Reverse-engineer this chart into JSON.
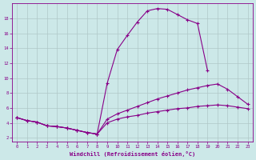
{
  "xlabel": "Windchill (Refroidissement éolien,°C)",
  "background_color": "#cce8e8",
  "grid_color": "#b0c8c8",
  "line_color": "#880088",
  "xlim": [
    -0.5,
    23.5
  ],
  "ylim": [
    1.5,
    20
  ],
  "xticks": [
    0,
    1,
    2,
    3,
    4,
    5,
    6,
    7,
    8,
    9,
    10,
    11,
    12,
    13,
    14,
    15,
    16,
    17,
    18,
    19,
    20,
    21,
    22,
    23
  ],
  "yticks": [
    2,
    4,
    6,
    8,
    10,
    12,
    14,
    16,
    18
  ],
  "line1_x": [
    0,
    1,
    2,
    3,
    4,
    5,
    6,
    7,
    8,
    9,
    10,
    11,
    12,
    13,
    14,
    15,
    16,
    17,
    18,
    19
  ],
  "line1_y": [
    4.7,
    4.3,
    4.1,
    3.6,
    3.5,
    3.3,
    3.0,
    2.7,
    2.5,
    9.3,
    13.8,
    15.7,
    17.5,
    19.0,
    19.3,
    19.2,
    18.5,
    17.8,
    17.3,
    11.0
  ],
  "line2_x": [
    0,
    1,
    2,
    3,
    4,
    5,
    6,
    7,
    8,
    9,
    10,
    11,
    12,
    13,
    14,
    15,
    16,
    17,
    18,
    19,
    20,
    21,
    22,
    23
  ],
  "line2_y": [
    4.7,
    4.3,
    4.1,
    3.6,
    3.5,
    3.3,
    3.0,
    2.7,
    2.5,
    4.5,
    5.2,
    5.7,
    6.2,
    6.7,
    7.2,
    7.6,
    8.0,
    8.4,
    8.7,
    9.0,
    9.2,
    8.5,
    7.5,
    6.5
  ],
  "line3_x": [
    0,
    1,
    2,
    3,
    4,
    5,
    6,
    7,
    8,
    9,
    10,
    11,
    12,
    13,
    14,
    15,
    16,
    17,
    18,
    19,
    20,
    21,
    22,
    23
  ],
  "line3_y": [
    4.7,
    4.3,
    4.1,
    3.6,
    3.5,
    3.3,
    3.0,
    2.7,
    2.5,
    4.0,
    4.5,
    4.8,
    5.0,
    5.3,
    5.5,
    5.7,
    5.9,
    6.0,
    6.2,
    6.3,
    6.4,
    6.3,
    6.1,
    5.9
  ]
}
